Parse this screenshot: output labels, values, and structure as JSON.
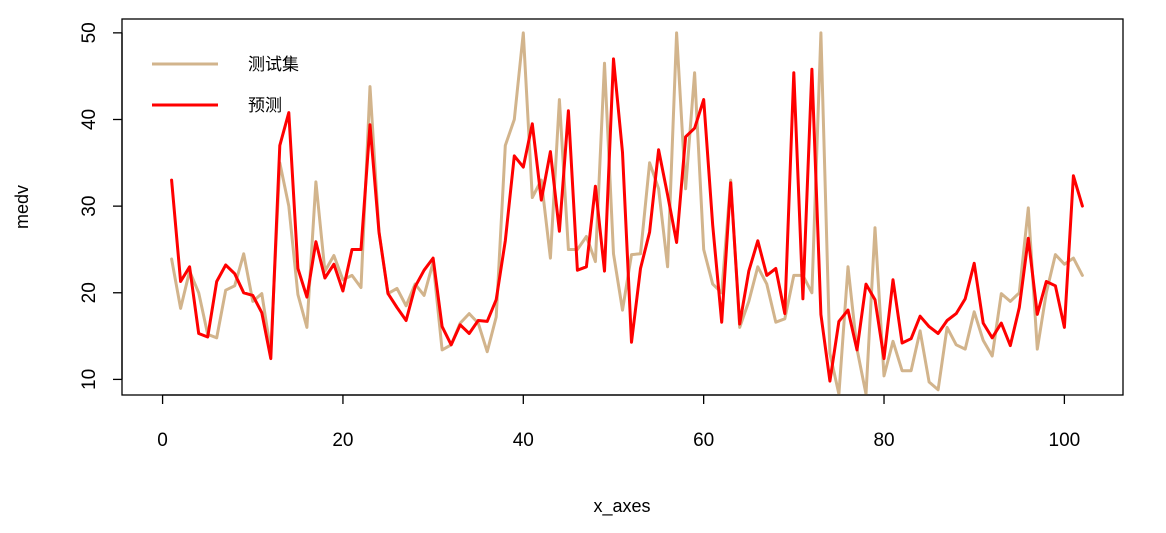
{
  "chart_data": {
    "type": "line",
    "title": "",
    "xlabel": "x_axes",
    "ylabel": "medv",
    "xlim": [
      -4.5,
      106.5
    ],
    "ylim": [
      8.2,
      51.6
    ],
    "xticks": [
      0,
      20,
      40,
      60,
      80,
      100
    ],
    "xtick_labels": [
      "0",
      "20",
      "40",
      "60",
      "80",
      "100"
    ],
    "yticks": [
      10,
      20,
      30,
      40,
      50
    ],
    "ytick_labels": [
      "10",
      "20",
      "30",
      "40",
      "50"
    ],
    "legend_position": "top-left",
    "x": [
      1,
      2,
      3,
      4,
      5,
      6,
      7,
      8,
      9,
      10,
      11,
      12,
      13,
      14,
      15,
      16,
      17,
      18,
      19,
      20,
      21,
      22,
      23,
      24,
      25,
      26,
      27,
      28,
      29,
      30,
      31,
      32,
      33,
      34,
      35,
      36,
      37,
      38,
      39,
      40,
      41,
      42,
      43,
      44,
      45,
      46,
      47,
      48,
      49,
      50,
      51,
      52,
      53,
      54,
      55,
      56,
      57,
      58,
      59,
      60,
      61,
      62,
      63,
      64,
      65,
      66,
      67,
      68,
      69,
      70,
      71,
      72,
      73,
      74,
      75,
      76,
      77,
      78,
      79,
      80,
      81,
      82,
      83,
      84,
      85,
      86,
      87,
      88,
      89,
      90,
      91,
      92,
      93,
      94,
      95,
      96,
      97,
      98,
      99,
      100,
      101,
      102
    ],
    "series": [
      {
        "name": "测试集",
        "color": "#D2B48C",
        "values": [
          23.9,
          18.2,
          22.5,
          20.0,
          15.2,
          14.8,
          20.3,
          20.8,
          24.5,
          19.0,
          19.9,
          13.2,
          35.0,
          30.0,
          19.8,
          16.0,
          32.8,
          22.5,
          24.3,
          21.5,
          22.0,
          20.6,
          43.8,
          27.0,
          19.9,
          20.5,
          18.5,
          21.0,
          19.7,
          23.5,
          13.4,
          14.0,
          16.5,
          17.6,
          16.5,
          13.2,
          17.2,
          37.0,
          40.0,
          50.0,
          31.0,
          33.0,
          24.0,
          42.3,
          25.0,
          25.0,
          26.5,
          23.6,
          46.5,
          24.5,
          18.0,
          24.4,
          24.5,
          35.0,
          32.0,
          23.0,
          50.0,
          32.0,
          45.4,
          25.0,
          21.0,
          20.0,
          33.0,
          16.0,
          19.0,
          23.0,
          21.0,
          16.6,
          17.0,
          22.0,
          22.0,
          20.0,
          50.0,
          13.0,
          8.3,
          23.0,
          13.5,
          8.3,
          27.5,
          10.4,
          14.4,
          11.0,
          11.0,
          15.6,
          9.7,
          8.8,
          16.0,
          14.0,
          13.5,
          17.8,
          14.5,
          12.7,
          19.9,
          19.0,
          20.0,
          29.8,
          13.5,
          20.0,
          24.4,
          23.3,
          24.0,
          22.0
        ]
      },
      {
        "name": "预测",
        "color": "#FF0000",
        "values": [
          33.0,
          21.3,
          23.0,
          15.3,
          14.9,
          21.3,
          23.2,
          22.2,
          20.0,
          19.7,
          17.7,
          12.4,
          37.0,
          40.8,
          22.8,
          19.5,
          25.9,
          21.7,
          23.3,
          20.2,
          25.0,
          25.0,
          39.4,
          27.0,
          19.9,
          18.3,
          16.8,
          20.7,
          22.6,
          24.0,
          16.1,
          14.0,
          16.3,
          15.3,
          16.8,
          16.7,
          19.2,
          26.0,
          35.8,
          34.5,
          39.5,
          30.7,
          36.3,
          27.1,
          41.0,
          22.6,
          23.0,
          32.3,
          22.5,
          47.0,
          36.2,
          14.3,
          22.8,
          27.0,
          36.5,
          31.3,
          25.8,
          38.0,
          39.0,
          42.3,
          27.8,
          16.6,
          32.7,
          16.4,
          22.5,
          26.0,
          22.0,
          22.8,
          17.6,
          45.4,
          19.3,
          45.8,
          17.5,
          9.8,
          16.7,
          18.0,
          13.4,
          21.0,
          19.2,
          12.4,
          21.5,
          14.2,
          14.7,
          17.3,
          16.1,
          15.3,
          16.8,
          17.6,
          19.3,
          23.4,
          16.5,
          14.8,
          16.5,
          13.9,
          18.3,
          26.3,
          17.5,
          21.3,
          20.8,
          16.0,
          33.5,
          30.0
        ]
      }
    ]
  }
}
